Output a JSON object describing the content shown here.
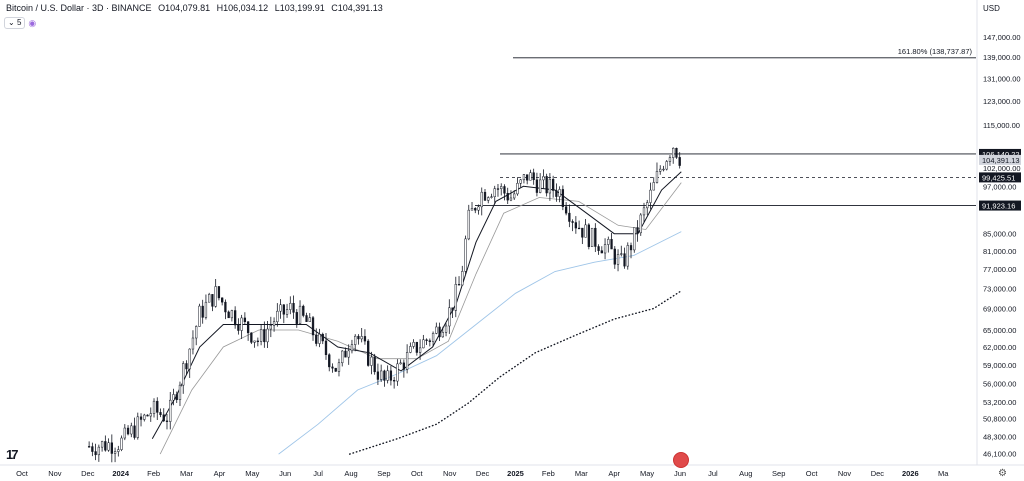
{
  "header": {
    "symbol": "Bitcoin / U.S. Dollar · 3D · BINANCE",
    "o": "O104,079.81",
    "h": "H106,034.12",
    "l": "L103,199.91",
    "c": "C104,391.13"
  },
  "indicator": {
    "count": "5"
  },
  "currency": "USD",
  "colors": {
    "candle": "#131722",
    "ma_blue": "#9fc5e8",
    "ma_gray": "#999999",
    "ma_black": "#131722",
    "dotted": "#131722"
  },
  "chart_data": {
    "type": "candlestick",
    "y_scale": "log",
    "ylim": [
      45000,
      155000
    ],
    "y_ticks": [
      "147,000.00",
      "139,000.00",
      "131,000.00",
      "123,000.00",
      "115,000.00",
      "102,000.00",
      "97,000.00",
      "85,000.00",
      "81,000.00",
      "77,000.00",
      "73,000.00",
      "69,000.00",
      "65,000.00",
      "62,000.00",
      "59,000.00",
      "56,000.00",
      "53,200.00",
      "50,800.00",
      "48,300.00",
      "46,100.00"
    ],
    "x_ticks": [
      "Oct",
      "Nov",
      "Dec",
      "2024",
      "Feb",
      "Mar",
      "Apr",
      "May",
      "Jun",
      "Jul",
      "Aug",
      "Sep",
      "Oct",
      "Nov",
      "Dec",
      "2025",
      "Feb",
      "Mar",
      "Apr",
      "May",
      "Jun",
      "Jul",
      "Aug",
      "Sep",
      "Oct",
      "Nov",
      "Dec",
      "2026",
      "Ma"
    ],
    "horizontal_lines": [
      {
        "value": 106140.22,
        "label": "106,140.22",
        "style": "solid"
      },
      {
        "value": 99425.51,
        "label": "99,425.51",
        "style": "dashed"
      },
      {
        "value": 91923.16,
        "label": "91,923.16",
        "style": "solid"
      }
    ],
    "current_price": {
      "value": 104391.13,
      "label": "104,391.13"
    },
    "fib_line": {
      "value": 138737.87,
      "label": "161.80% (138,737.87)"
    },
    "price_path": [
      [
        2023.92,
        47000
      ],
      [
        2024.0,
        47500
      ],
      [
        2024.08,
        52000
      ],
      [
        2024.12,
        51000
      ],
      [
        2024.18,
        63000
      ],
      [
        2024.2,
        68000
      ],
      [
        2024.24,
        72000
      ],
      [
        2024.27,
        69000
      ],
      [
        2024.31,
        66000
      ],
      [
        2024.35,
        63000
      ],
      [
        2024.39,
        67000
      ],
      [
        2024.43,
        69000
      ],
      [
        2024.47,
        66500
      ],
      [
        2024.51,
        62000
      ],
      [
        2024.55,
        58000
      ],
      [
        2024.59,
        65000
      ],
      [
        2024.63,
        60000
      ],
      [
        2024.67,
        56000
      ],
      [
        2024.71,
        59000
      ],
      [
        2024.75,
        62000
      ],
      [
        2024.79,
        64000
      ],
      [
        2024.83,
        68000
      ],
      [
        2024.86,
        74000
      ],
      [
        2024.88,
        88000
      ],
      [
        2024.91,
        95000
      ],
      [
        2024.95,
        97000
      ],
      [
        2024.99,
        94000
      ],
      [
        2025.03,
        100000
      ],
      [
        2025.07,
        97000
      ],
      [
        2025.11,
        96000
      ],
      [
        2025.15,
        88000
      ],
      [
        2025.19,
        84000
      ],
      [
        2025.23,
        82000
      ],
      [
        2025.27,
        78000
      ],
      [
        2025.3,
        84000
      ],
      [
        2025.34,
        94000
      ],
      [
        2025.37,
        103000
      ],
      [
        2025.4,
        109000
      ],
      [
        2025.42,
        104391
      ]
    ],
    "ma_black_path": [
      [
        2024.08,
        48000
      ],
      [
        2024.14,
        54000
      ],
      [
        2024.2,
        62000
      ],
      [
        2024.26,
        66000
      ],
      [
        2024.33,
        66000
      ],
      [
        2024.4,
        66000
      ],
      [
        2024.47,
        66000
      ],
      [
        2024.55,
        62000
      ],
      [
        2024.63,
        61000
      ],
      [
        2024.71,
        58000
      ],
      [
        2024.79,
        62000
      ],
      [
        2024.85,
        70000
      ],
      [
        2024.9,
        83000
      ],
      [
        2024.95,
        93000
      ],
      [
        2025.02,
        97000
      ],
      [
        2025.1,
        96000
      ],
      [
        2025.18,
        90000
      ],
      [
        2025.25,
        85000
      ],
      [
        2025.31,
        85000
      ],
      [
        2025.37,
        96000
      ],
      [
        2025.42,
        101000
      ]
    ],
    "ma_gray_path": [
      [
        2024.1,
        46000
      ],
      [
        2024.18,
        55000
      ],
      [
        2024.26,
        62000
      ],
      [
        2024.35,
        65000
      ],
      [
        2024.45,
        65000
      ],
      [
        2024.55,
        63000
      ],
      [
        2024.65,
        60000
      ],
      [
        2024.75,
        60000
      ],
      [
        2024.83,
        63000
      ],
      [
        2024.9,
        76000
      ],
      [
        2024.97,
        90000
      ],
      [
        2025.06,
        94000
      ],
      [
        2025.16,
        93000
      ],
      [
        2025.26,
        87000
      ],
      [
        2025.33,
        86000
      ],
      [
        2025.42,
        98000
      ]
    ],
    "ma_blue_path": [
      [
        2024.4,
        46000
      ],
      [
        2024.5,
        50000
      ],
      [
        2024.6,
        55000
      ],
      [
        2024.7,
        57500
      ],
      [
        2024.8,
        60500
      ],
      [
        2024.9,
        66000
      ],
      [
        2025.0,
        72000
      ],
      [
        2025.1,
        76500
      ],
      [
        2025.2,
        78500
      ],
      [
        2025.3,
        80000
      ],
      [
        2025.42,
        85500
      ]
    ],
    "ma_dotted_path": [
      [
        2024.58,
        46000
      ],
      [
        2024.7,
        48000
      ],
      [
        2024.8,
        50000
      ],
      [
        2024.88,
        53000
      ],
      [
        2024.96,
        57000
      ],
      [
        2025.05,
        61000
      ],
      [
        2025.15,
        64000
      ],
      [
        2025.25,
        67000
      ],
      [
        2025.35,
        69000
      ],
      [
        2025.42,
        72500
      ]
    ]
  }
}
